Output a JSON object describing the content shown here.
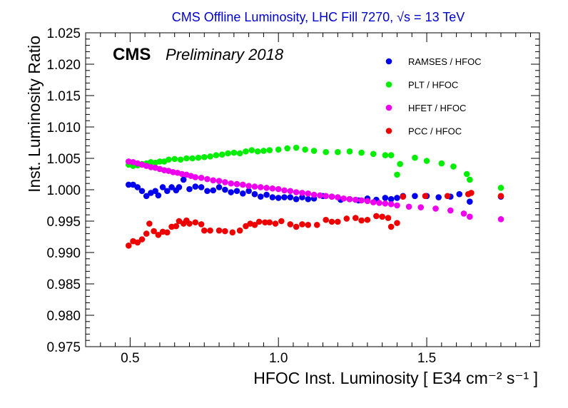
{
  "chart_data": {
    "type": "scatter",
    "title": "CMS Offline Luminosity, LHC Fill 7270,",
    "title_sqrt_label": "√s = 13 TeV",
    "xlabel": "HFOC Inst. Luminosity [ E34  cm⁻² s⁻¹ ]",
    "ylabel": "Inst. Luminosity Ratio",
    "experiment_label": "CMS",
    "status_label": "Preliminary 2018",
    "xlim": [
      0.35,
      1.88
    ],
    "ylim": [
      0.975,
      1.025
    ],
    "xticks": [
      {
        "value": 0.5,
        "label": "0.5"
      },
      {
        "value": 1.0,
        "label": "1.0"
      },
      {
        "value": 1.5,
        "label": "1.5"
      }
    ],
    "yticks": [
      {
        "value": 0.975,
        "label": "0.975"
      },
      {
        "value": 0.98,
        "label": "0.980"
      },
      {
        "value": 0.985,
        "label": "0.985"
      },
      {
        "value": 0.99,
        "label": "0.990"
      },
      {
        "value": 0.995,
        "label": "0.995"
      },
      {
        "value": 1.0,
        "label": "1.000"
      },
      {
        "value": 1.005,
        "label": "1.005"
      },
      {
        "value": 1.01,
        "label": "1.010"
      },
      {
        "value": 1.015,
        "label": "1.015"
      },
      {
        "value": 1.02,
        "label": "1.020"
      },
      {
        "value": 1.025,
        "label": "1.025"
      }
    ],
    "legend_position": "top-right",
    "series": [
      {
        "name": "RAMSES / HFOC",
        "color": "#0000ee",
        "points": [
          [
            0.495,
            1.0008
          ],
          [
            0.51,
            1.0008
          ],
          [
            0.525,
            1.0004
          ],
          [
            0.54,
            0.9998
          ],
          [
            0.555,
            0.999
          ],
          [
            0.57,
            0.9995
          ],
          [
            0.585,
            0.9998
          ],
          [
            0.595,
            0.9991
          ],
          [
            0.61,
            1.0004
          ],
          [
            0.625,
            0.9998
          ],
          [
            0.64,
            1.0004
          ],
          [
            0.655,
            0.9999
          ],
          [
            0.665,
            1.0004
          ],
          [
            0.68,
            1.0016
          ],
          [
            0.7,
            1.0001
          ],
          [
            0.72,
            1.0005
          ],
          [
            0.74,
            1.0004
          ],
          [
            0.76,
            0.9998
          ],
          [
            0.78,
            0.9999
          ],
          [
            0.8,
            1.0004
          ],
          [
            0.82,
            1.0
          ],
          [
            0.84,
            0.9996
          ],
          [
            0.86,
            0.9998
          ],
          [
            0.88,
            0.9994
          ],
          [
            0.9,
            0.9998
          ],
          [
            0.92,
            0.9993
          ],
          [
            0.94,
            0.9989
          ],
          [
            0.96,
            0.9992
          ],
          [
            0.98,
            0.9988
          ],
          [
            1.0,
            0.9987
          ],
          [
            1.02,
            0.9988
          ],
          [
            1.04,
            0.9988
          ],
          [
            1.06,
            0.9985
          ],
          [
            1.08,
            0.9988
          ],
          [
            1.1,
            0.9985
          ],
          [
            1.12,
            0.9986
          ],
          [
            1.15,
            0.999
          ],
          [
            1.18,
            0.9989
          ],
          [
            1.21,
            0.9984
          ],
          [
            1.24,
            0.9985
          ],
          [
            1.27,
            0.9983
          ],
          [
            1.3,
            0.9986
          ],
          [
            1.33,
            0.9984
          ],
          [
            1.36,
            0.9987
          ],
          [
            1.38,
            0.9985
          ],
          [
            1.4,
            0.9987
          ],
          [
            1.42,
            0.999
          ],
          [
            1.46,
            0.999
          ],
          [
            1.5,
            0.999
          ],
          [
            1.54,
            0.9988
          ],
          [
            1.58,
            0.9989
          ],
          [
            1.61,
            0.9993
          ],
          [
            1.645,
            0.9981
          ],
          [
            1.75,
            0.9989
          ]
        ]
      },
      {
        "name": "PLT / HFOC",
        "color": "#00ee00",
        "points": [
          [
            0.495,
            1.004
          ],
          [
            0.51,
            1.0038
          ],
          [
            0.525,
            1.0039
          ],
          [
            0.54,
            1.0041
          ],
          [
            0.555,
            1.0042
          ],
          [
            0.57,
            1.0044
          ],
          [
            0.585,
            1.0043
          ],
          [
            0.6,
            1.0045
          ],
          [
            0.615,
            1.0045
          ],
          [
            0.63,
            1.0048
          ],
          [
            0.65,
            1.0049
          ],
          [
            0.67,
            1.0048
          ],
          [
            0.69,
            1.005
          ],
          [
            0.71,
            1.005
          ],
          [
            0.73,
            1.0051
          ],
          [
            0.75,
            1.0052
          ],
          [
            0.77,
            1.0053
          ],
          [
            0.79,
            1.0055
          ],
          [
            0.81,
            1.0056
          ],
          [
            0.83,
            1.0058
          ],
          [
            0.85,
            1.0059
          ],
          [
            0.87,
            1.0058
          ],
          [
            0.89,
            1.0061
          ],
          [
            0.91,
            1.0063
          ],
          [
            0.93,
            1.0061
          ],
          [
            0.95,
            1.0062
          ],
          [
            0.97,
            1.0063
          ],
          [
            1.0,
            1.0064
          ],
          [
            1.03,
            1.0066
          ],
          [
            1.06,
            1.0067
          ],
          [
            1.09,
            1.0064
          ],
          [
            1.12,
            1.0062
          ],
          [
            1.16,
            1.006
          ],
          [
            1.2,
            1.006
          ],
          [
            1.24,
            1.0061
          ],
          [
            1.28,
            1.0059
          ],
          [
            1.32,
            1.0057
          ],
          [
            1.36,
            1.0055
          ],
          [
            1.38,
            1.0055
          ],
          [
            1.41,
            1.0041
          ],
          [
            1.4,
            1.0024
          ],
          [
            1.46,
            1.0051
          ],
          [
            1.5,
            1.0046
          ],
          [
            1.55,
            1.0042
          ],
          [
            1.59,
            1.0037
          ],
          [
            1.635,
            1.0025
          ],
          [
            1.645,
            1.0016
          ],
          [
            1.75,
            1.0003
          ]
        ]
      },
      {
        "name": "HFET / HFOC",
        "color": "#ee00ee",
        "points": [
          [
            0.495,
            1.0045
          ],
          [
            0.51,
            1.0044
          ],
          [
            0.525,
            1.0042
          ],
          [
            0.54,
            1.004
          ],
          [
            0.555,
            1.0038
          ],
          [
            0.57,
            1.0036
          ],
          [
            0.585,
            1.0035
          ],
          [
            0.6,
            1.0033
          ],
          [
            0.615,
            1.0031
          ],
          [
            0.63,
            1.003
          ],
          [
            0.645,
            1.0028
          ],
          [
            0.66,
            1.0027
          ],
          [
            0.675,
            1.0025
          ],
          [
            0.69,
            1.0024
          ],
          [
            0.705,
            1.0022
          ],
          [
            0.72,
            1.002
          ],
          [
            0.74,
            1.0019
          ],
          [
            0.76,
            1.0017
          ],
          [
            0.78,
            1.0015
          ],
          [
            0.8,
            1.0014
          ],
          [
            0.82,
            1.0012
          ],
          [
            0.84,
            1.001
          ],
          [
            0.86,
            1.0009
          ],
          [
            0.88,
            1.0008
          ],
          [
            0.9,
            1.0006
          ],
          [
            0.92,
            1.0005
          ],
          [
            0.94,
            1.0004
          ],
          [
            0.96,
            1.0003
          ],
          [
            0.98,
            1.0002
          ],
          [
            1.0,
            1.0001
          ],
          [
            1.02,
            0.9999
          ],
          [
            1.04,
            0.9998
          ],
          [
            1.06,
            0.9996
          ],
          [
            1.08,
            0.9995
          ],
          [
            1.1,
            0.9994
          ],
          [
            1.12,
            0.9992
          ],
          [
            1.14,
            0.9991
          ],
          [
            1.16,
            0.999
          ],
          [
            1.18,
            0.9989
          ],
          [
            1.2,
            0.9988
          ],
          [
            1.22,
            0.9986
          ],
          [
            1.24,
            0.9985
          ],
          [
            1.26,
            0.9984
          ],
          [
            1.28,
            0.9983
          ],
          [
            1.3,
            0.9982
          ],
          [
            1.32,
            0.998
          ],
          [
            1.34,
            0.9979
          ],
          [
            1.36,
            0.9978
          ],
          [
            1.38,
            0.9977
          ],
          [
            1.4,
            0.9975
          ],
          [
            1.44,
            0.9973
          ],
          [
            1.48,
            0.9972
          ],
          [
            1.53,
            0.997
          ],
          [
            1.58,
            0.9967
          ],
          [
            1.625,
            0.9962
          ],
          [
            1.645,
            0.9957
          ],
          [
            1.75,
            0.9953
          ]
        ]
      },
      {
        "name": "PCC / HFOC",
        "color": "#ee0000",
        "points": [
          [
            0.495,
            0.9911
          ],
          [
            0.51,
            0.9918
          ],
          [
            0.525,
            0.9916
          ],
          [
            0.54,
            0.9921
          ],
          [
            0.555,
            0.993
          ],
          [
            0.565,
            0.9946
          ],
          [
            0.58,
            0.9934
          ],
          [
            0.595,
            0.9928
          ],
          [
            0.61,
            0.9933
          ],
          [
            0.625,
            0.9932
          ],
          [
            0.64,
            0.9941
          ],
          [
            0.655,
            0.9942
          ],
          [
            0.665,
            0.995
          ],
          [
            0.68,
            0.9946
          ],
          [
            0.69,
            0.9951
          ],
          [
            0.7,
            0.9946
          ],
          [
            0.72,
            0.9948
          ],
          [
            0.74,
            0.9945
          ],
          [
            0.75,
            0.9935
          ],
          [
            0.77,
            0.9935
          ],
          [
            0.8,
            0.9935
          ],
          [
            0.82,
            0.9934
          ],
          [
            0.845,
            0.9932
          ],
          [
            0.87,
            0.9935
          ],
          [
            0.89,
            0.9942
          ],
          [
            0.905,
            0.9946
          ],
          [
            0.92,
            0.9944
          ],
          [
            0.935,
            0.9949
          ],
          [
            0.955,
            0.9948
          ],
          [
            0.97,
            0.9948
          ],
          [
            0.99,
            0.9946
          ],
          [
            1.01,
            0.995
          ],
          [
            1.04,
            0.9945
          ],
          [
            1.06,
            0.9941
          ],
          [
            1.08,
            0.9945
          ],
          [
            1.1,
            0.9944
          ],
          [
            1.13,
            0.9944
          ],
          [
            1.16,
            0.9952
          ],
          [
            1.18,
            0.9949
          ],
          [
            1.2,
            0.9949
          ],
          [
            1.23,
            0.9954
          ],
          [
            1.26,
            0.9955
          ],
          [
            1.28,
            0.9951
          ],
          [
            1.3,
            0.9952
          ],
          [
            1.33,
            0.9958
          ],
          [
            1.35,
            0.9957
          ],
          [
            1.37,
            0.9955
          ],
          [
            1.4,
            0.9947
          ],
          [
            1.38,
            0.9941
          ],
          [
            1.42,
            0.9989
          ],
          [
            1.495,
            0.999
          ],
          [
            1.57,
            0.999
          ],
          [
            1.64,
            0.9993
          ],
          [
            1.65,
            0.9995
          ],
          [
            1.75,
            0.999
          ]
        ]
      }
    ]
  }
}
